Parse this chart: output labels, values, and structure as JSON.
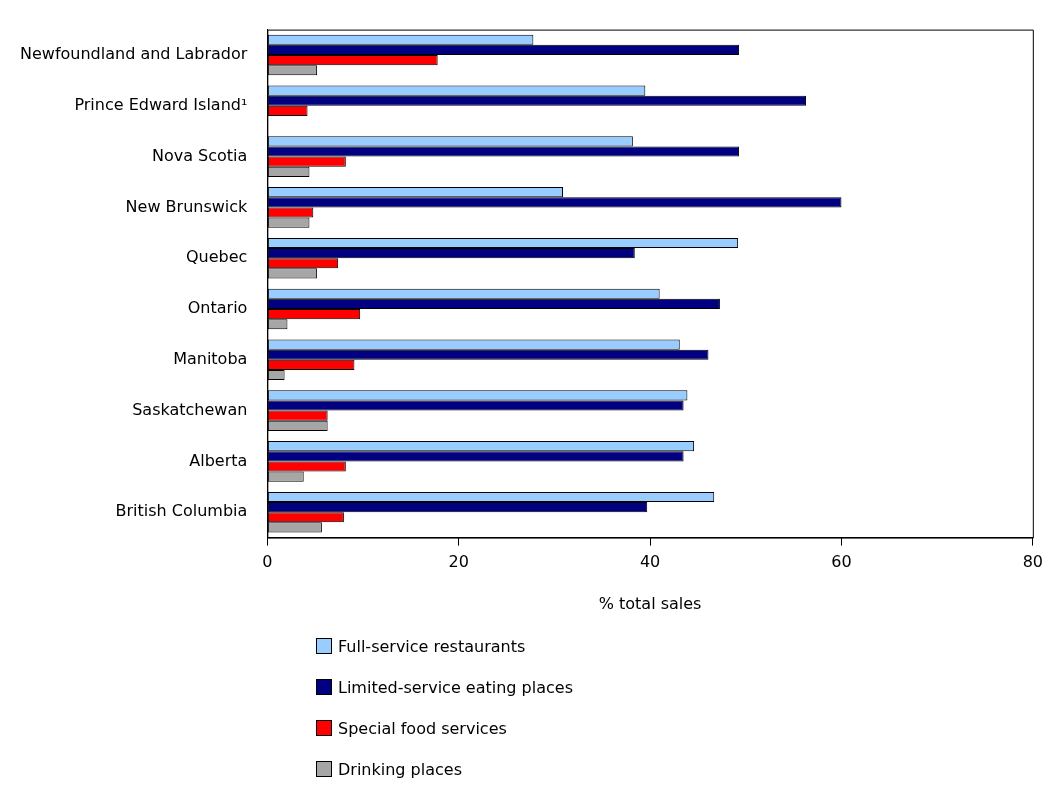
{
  "chart_data": {
    "type": "bar",
    "orientation": "horizontal",
    "xlabel": "% total sales",
    "categories": [
      "Newfoundland and Labrador",
      "Prince Edward Island¹",
      "Nova Scotia",
      "New Brunswick",
      "Quebec",
      "Ontario",
      "Manitoba",
      "Saskatchewan",
      "Alberta",
      "British Columbia"
    ],
    "series": [
      {
        "name": "Full-service restaurants",
        "color": "#99ccff",
        "values": [
          27.8,
          39.5,
          38.2,
          30.9,
          49.2,
          41.0,
          43.1,
          43.9,
          44.6,
          46.7
        ]
      },
      {
        "name": "Limited-service eating places",
        "color": "#000080",
        "values": [
          49.3,
          56.3,
          49.3,
          60.0,
          38.4,
          47.3,
          46.1,
          43.5,
          43.5,
          39.7
        ]
      },
      {
        "name": "Special food services",
        "color": "#ff0000",
        "values": [
          17.8,
          4.2,
          8.2,
          4.8,
          7.4,
          9.7,
          9.1,
          6.3,
          8.2,
          8.0
        ]
      },
      {
        "name": "Drinking places",
        "color": "#a6a6a6",
        "values": [
          5.2,
          0,
          4.4,
          4.4,
          5.2,
          2.1,
          1.8,
          6.3,
          3.8,
          5.7
        ]
      }
    ],
    "xlim": [
      0,
      80
    ],
    "xticks": [
      0,
      20,
      40,
      60,
      80
    ],
    "grid": false,
    "legend": "bottom"
  }
}
